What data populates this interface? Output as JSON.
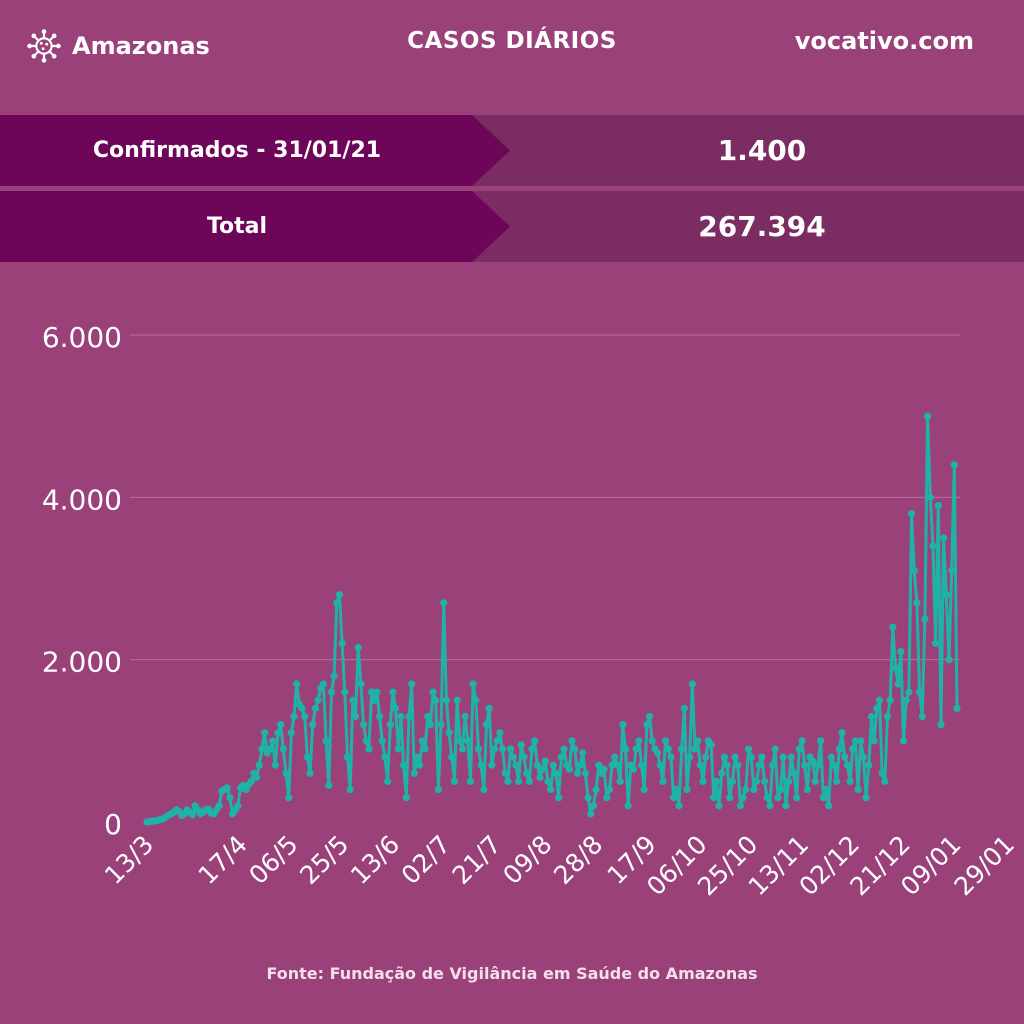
{
  "header": {
    "logo_text": "Amazonas",
    "title": "CASOS DIÁRIOS",
    "site": "vocativo.com"
  },
  "stats": {
    "confirmed_label": "Confirmados - 31/01/21",
    "confirmed_value": "1.400",
    "total_label": "Total",
    "total_value": "267.394"
  },
  "footer": {
    "source": "Fonte: Fundação de Vigilância em Saúde do Amazonas"
  },
  "colors": {
    "background": "#9a417a",
    "banner": "#6d0658",
    "banner_value": "#7a2c63",
    "line": "#1fb3a8",
    "grid": "#b86f9f"
  },
  "chart_data": {
    "type": "line",
    "ylim": [
      0,
      6000
    ],
    "yticks": [
      0,
      2000,
      4000,
      6000
    ],
    "ytick_labels": [
      "0",
      "2.000",
      "4.000",
      "6.000"
    ],
    "xtick_labels": [
      "13/3",
      "17/4",
      "06/5",
      "25/5",
      "13/6",
      "02/7",
      "21/7",
      "09/8",
      "28/8",
      "17/9",
      "06/10",
      "25/10",
      "13/11",
      "02/12",
      "21/12",
      "09/01",
      "29/01"
    ],
    "xtick_index": [
      0,
      35,
      54,
      73,
      92,
      111,
      130,
      149,
      168,
      188,
      207,
      226,
      245,
      264,
      283,
      302,
      322
    ],
    "values": [
      0,
      5,
      10,
      15,
      20,
      30,
      40,
      60,
      80,
      100,
      120,
      150,
      130,
      80,
      100,
      150,
      120,
      90,
      200,
      150,
      100,
      120,
      150,
      160,
      110,
      100,
      150,
      200,
      380,
      400,
      420,
      300,
      100,
      150,
      200,
      420,
      450,
      400,
      460,
      500,
      600,
      550,
      700,
      900,
      1100,
      850,
      900,
      1000,
      700,
      1100,
      1200,
      900,
      600,
      300,
      1100,
      1300,
      1700,
      1450,
      1400,
      1300,
      800,
      600,
      1200,
      1400,
      1500,
      1650,
      1700,
      1000,
      450,
      1600,
      1800,
      2700,
      2800,
      2200,
      1600,
      800,
      400,
      1500,
      1300,
      2150,
      1700,
      1200,
      1000,
      900,
      1600,
      1500,
      1600,
      1300,
      1000,
      800,
      500,
      1200,
      1600,
      1400,
      900,
      1300,
      700,
      300,
      1300,
      1700,
      600,
      800,
      700,
      1000,
      900,
      1300,
      1200,
      1600,
      1500,
      400,
      1200,
      2700,
      1500,
      1100,
      800,
      500,
      1500,
      1000,
      900,
      1300,
      1000,
      500,
      1700,
      1500,
      900,
      700,
      400,
      1200,
      1400,
      700,
      900,
      1000,
      1100,
      900,
      600,
      500,
      900,
      800,
      700,
      500,
      950,
      800,
      600,
      500,
      900,
      1000,
      700,
      550,
      650,
      750,
      500,
      400,
      700,
      600,
      300,
      800,
      900,
      700,
      650,
      1000,
      900,
      600,
      700,
      850,
      600,
      300,
      100,
      200,
      400,
      700,
      600,
      650,
      300,
      400,
      700,
      800,
      700,
      500,
      1200,
      900,
      200,
      700,
      650,
      900,
      1000,
      700,
      400,
      1200,
      1300,
      1000,
      900,
      850,
      700,
      500,
      1000,
      900,
      800,
      300,
      400,
      200,
      900,
      1400,
      400,
      800,
      1700,
      900,
      1000,
      700,
      500,
      800,
      1000,
      950,
      300,
      500,
      200,
      600,
      800,
      700,
      300,
      500,
      800,
      700,
      200,
      300,
      400,
      900,
      800,
      400,
      500,
      700,
      800,
      500,
      300,
      200,
      700,
      900,
      300,
      400,
      800,
      200,
      500,
      800,
      600,
      300,
      900,
      1000,
      700,
      400,
      800,
      750,
      500,
      700,
      1000,
      300,
      400,
      200,
      800,
      700,
      500,
      900,
      1100,
      800,
      700,
      500,
      900,
      1000,
      400,
      1000,
      800,
      300,
      700,
      1300,
      1000,
      1400,
      1500,
      600,
      500,
      1300,
      1500,
      2400,
      1900,
      1700,
      2100,
      1000,
      1500,
      1600,
      3800,
      3100,
      2700,
      1600,
      1300,
      2500,
      5000,
      4000,
      3400,
      2200,
      3900,
      1200,
      3500,
      2800,
      2000,
      3100,
      4400,
      1400
    ]
  }
}
